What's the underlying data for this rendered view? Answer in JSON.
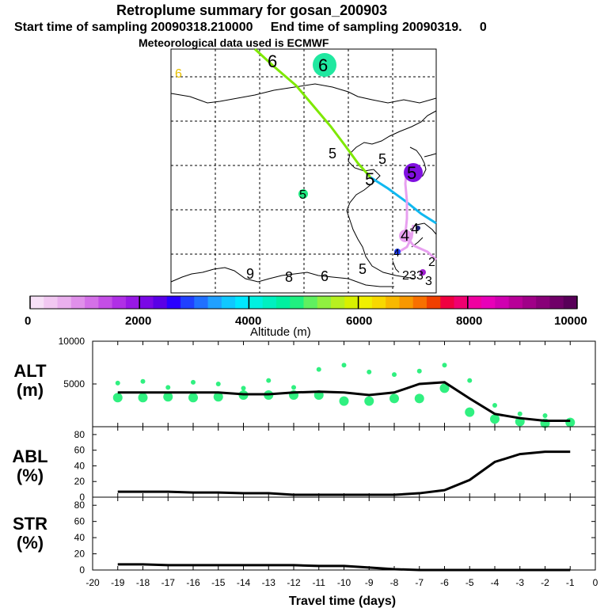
{
  "header": {
    "title": "Retroplume summary for gosan_200903",
    "sampling_line": "Start time of sampling 20090318.210000     End time of sampling 20090319.     0",
    "met_line": "Meteorological data used is ECMWF"
  },
  "map": {
    "trajectory_labels": [
      {
        "text": "6",
        "kind": "yellow"
      },
      {
        "text": "6",
        "kind": "black"
      },
      {
        "text": "6",
        "kind": "black-on-teal"
      },
      {
        "text": "5",
        "kind": "black"
      },
      {
        "text": "5",
        "kind": "black"
      },
      {
        "text": "5",
        "kind": "black"
      },
      {
        "text": "5",
        "kind": "black-on-purple"
      },
      {
        "text": "5",
        "kind": "black-on-green"
      },
      {
        "text": "9",
        "kind": "black"
      },
      {
        "text": "8",
        "kind": "black"
      },
      {
        "text": "6",
        "kind": "black"
      },
      {
        "text": "5",
        "kind": "black"
      },
      {
        "text": "4",
        "kind": "black"
      },
      {
        "text": "4",
        "kind": "black"
      },
      {
        "text": "4",
        "kind": "black"
      },
      {
        "text": "2",
        "kind": "black"
      },
      {
        "text": "2",
        "kind": "black"
      },
      {
        "text": "3",
        "kind": "black"
      },
      {
        "text": "3",
        "kind": "black"
      },
      {
        "text": "3",
        "kind": "black"
      }
    ]
  },
  "colorbar": {
    "min": 0,
    "max": 10000,
    "tick_labels": [
      "0",
      "2000",
      "4000",
      "6000",
      "8000",
      "10000"
    ],
    "label": "Altitude (m)",
    "colors": [
      "#f7e0f7",
      "#f2c8f2",
      "#eab0ee",
      "#e090ea",
      "#d470e8",
      "#c44ee6",
      "#b030e6",
      "#9818e6",
      "#7a08e6",
      "#5a00e6",
      "#2a00ff",
      "#2040ff",
      "#2070ff",
      "#20a0ff",
      "#10c8ff",
      "#00e8ff",
      "#00f0e0",
      "#00f0c0",
      "#00f0a0",
      "#20f080",
      "#60f060",
      "#90f040",
      "#b8f020",
      "#d8f000",
      "#f0f000",
      "#f8d800",
      "#f8b800",
      "#f89800",
      "#f87000",
      "#f04000",
      "#f00040",
      "#f00070",
      "#f000a0",
      "#e800b8",
      "#d000b0",
      "#b80098",
      "#a00088",
      "#880078",
      "#700068",
      "#580058"
    ]
  },
  "chart_data": [
    {
      "type": "line",
      "panel": "ALT",
      "ylabel": "ALT (m)",
      "xlim": [
        -20,
        0
      ],
      "ylim": [
        0,
        10000
      ],
      "ytick_labels": [
        "5000",
        "10000"
      ],
      "x": [
        -19,
        -18,
        -17,
        -16,
        -15,
        -14,
        -13,
        -12,
        -11,
        -10,
        -9,
        -8,
        -7,
        -6,
        -5,
        -4,
        -3,
        -2,
        -1
      ],
      "values": [
        4000,
        4000,
        4000,
        4000,
        4000,
        3800,
        3800,
        4000,
        4100,
        4000,
        3700,
        4000,
        5000,
        5200,
        3300,
        1500,
        1000,
        700,
        700
      ],
      "scatter": [
        {
          "x": -19,
          "y": 3400
        },
        {
          "x": -19,
          "y": 5100
        },
        {
          "x": -18,
          "y": 3400
        },
        {
          "x": -18,
          "y": 5300
        },
        {
          "x": -17,
          "y": 3500
        },
        {
          "x": -17,
          "y": 4600
        },
        {
          "x": -16,
          "y": 3400
        },
        {
          "x": -16,
          "y": 5200
        },
        {
          "x": -15,
          "y": 3500
        },
        {
          "x": -15,
          "y": 5000
        },
        {
          "x": -14,
          "y": 3700
        },
        {
          "x": -14,
          "y": 4500
        },
        {
          "x": -13,
          "y": 3700
        },
        {
          "x": -13,
          "y": 5400
        },
        {
          "x": -12,
          "y": 3700
        },
        {
          "x": -12,
          "y": 4600
        },
        {
          "x": -11,
          "y": 3700
        },
        {
          "x": -11,
          "y": 6700
        },
        {
          "x": -10,
          "y": 3000
        },
        {
          "x": -10,
          "y": 7200
        },
        {
          "x": -9,
          "y": 3000
        },
        {
          "x": -9,
          "y": 6400
        },
        {
          "x": -8,
          "y": 3300
        },
        {
          "x": -8,
          "y": 6100
        },
        {
          "x": -7,
          "y": 3300
        },
        {
          "x": -7,
          "y": 6500
        },
        {
          "x": -6,
          "y": 4500
        },
        {
          "x": -6,
          "y": 7200
        },
        {
          "x": -5,
          "y": 1700
        },
        {
          "x": -5,
          "y": 5400
        },
        {
          "x": -4,
          "y": 900
        },
        {
          "x": -4,
          "y": 2500
        },
        {
          "x": -3,
          "y": 600
        },
        {
          "x": -3,
          "y": 1500
        },
        {
          "x": -2,
          "y": 400
        },
        {
          "x": -2,
          "y": 1300
        },
        {
          "x": -1,
          "y": 500
        }
      ]
    },
    {
      "type": "line",
      "panel": "ABL",
      "ylabel": "ABL (%)",
      "xlim": [
        -20,
        0
      ],
      "ylim": [
        0,
        90
      ],
      "ytick_labels": [
        "0",
        "20",
        "40",
        "60",
        "80"
      ],
      "x": [
        -19,
        -18,
        -17,
        -16,
        -15,
        -14,
        -13,
        -12,
        -11,
        -10,
        -9,
        -8,
        -7,
        -6,
        -5,
        -4,
        -3,
        -2,
        -1
      ],
      "values": [
        7,
        7,
        7,
        6,
        6,
        5,
        5,
        3,
        3,
        3,
        3,
        3,
        5,
        9,
        22,
        45,
        55,
        58,
        58
      ]
    },
    {
      "type": "line",
      "panel": "STR",
      "ylabel": "STR (%)",
      "xlim": [
        -20,
        0
      ],
      "ylim": [
        0,
        90
      ],
      "ytick_labels": [
        "0",
        "20",
        "40",
        "60",
        "80"
      ],
      "xtick_labels": [
        "-20",
        "-19",
        "-18",
        "-17",
        "-16",
        "-15",
        "-14",
        "-13",
        "-12",
        "-11",
        "-10",
        "-9",
        "-8",
        "-7",
        "-6",
        "-5",
        "-4",
        "-3",
        "-2",
        "-1",
        "0"
      ],
      "xlabel": "Travel time (days)",
      "x": [
        -19,
        -18,
        -17,
        -16,
        -15,
        -14,
        -13,
        -12,
        -11,
        -10,
        -9,
        -8,
        -7,
        -6,
        -5,
        -4,
        -3,
        -2,
        -1
      ],
      "values": [
        7,
        7,
        6,
        6,
        6,
        6,
        6,
        6,
        5,
        5,
        3,
        1,
        0,
        0,
        0,
        0,
        0,
        0,
        0
      ]
    }
  ]
}
